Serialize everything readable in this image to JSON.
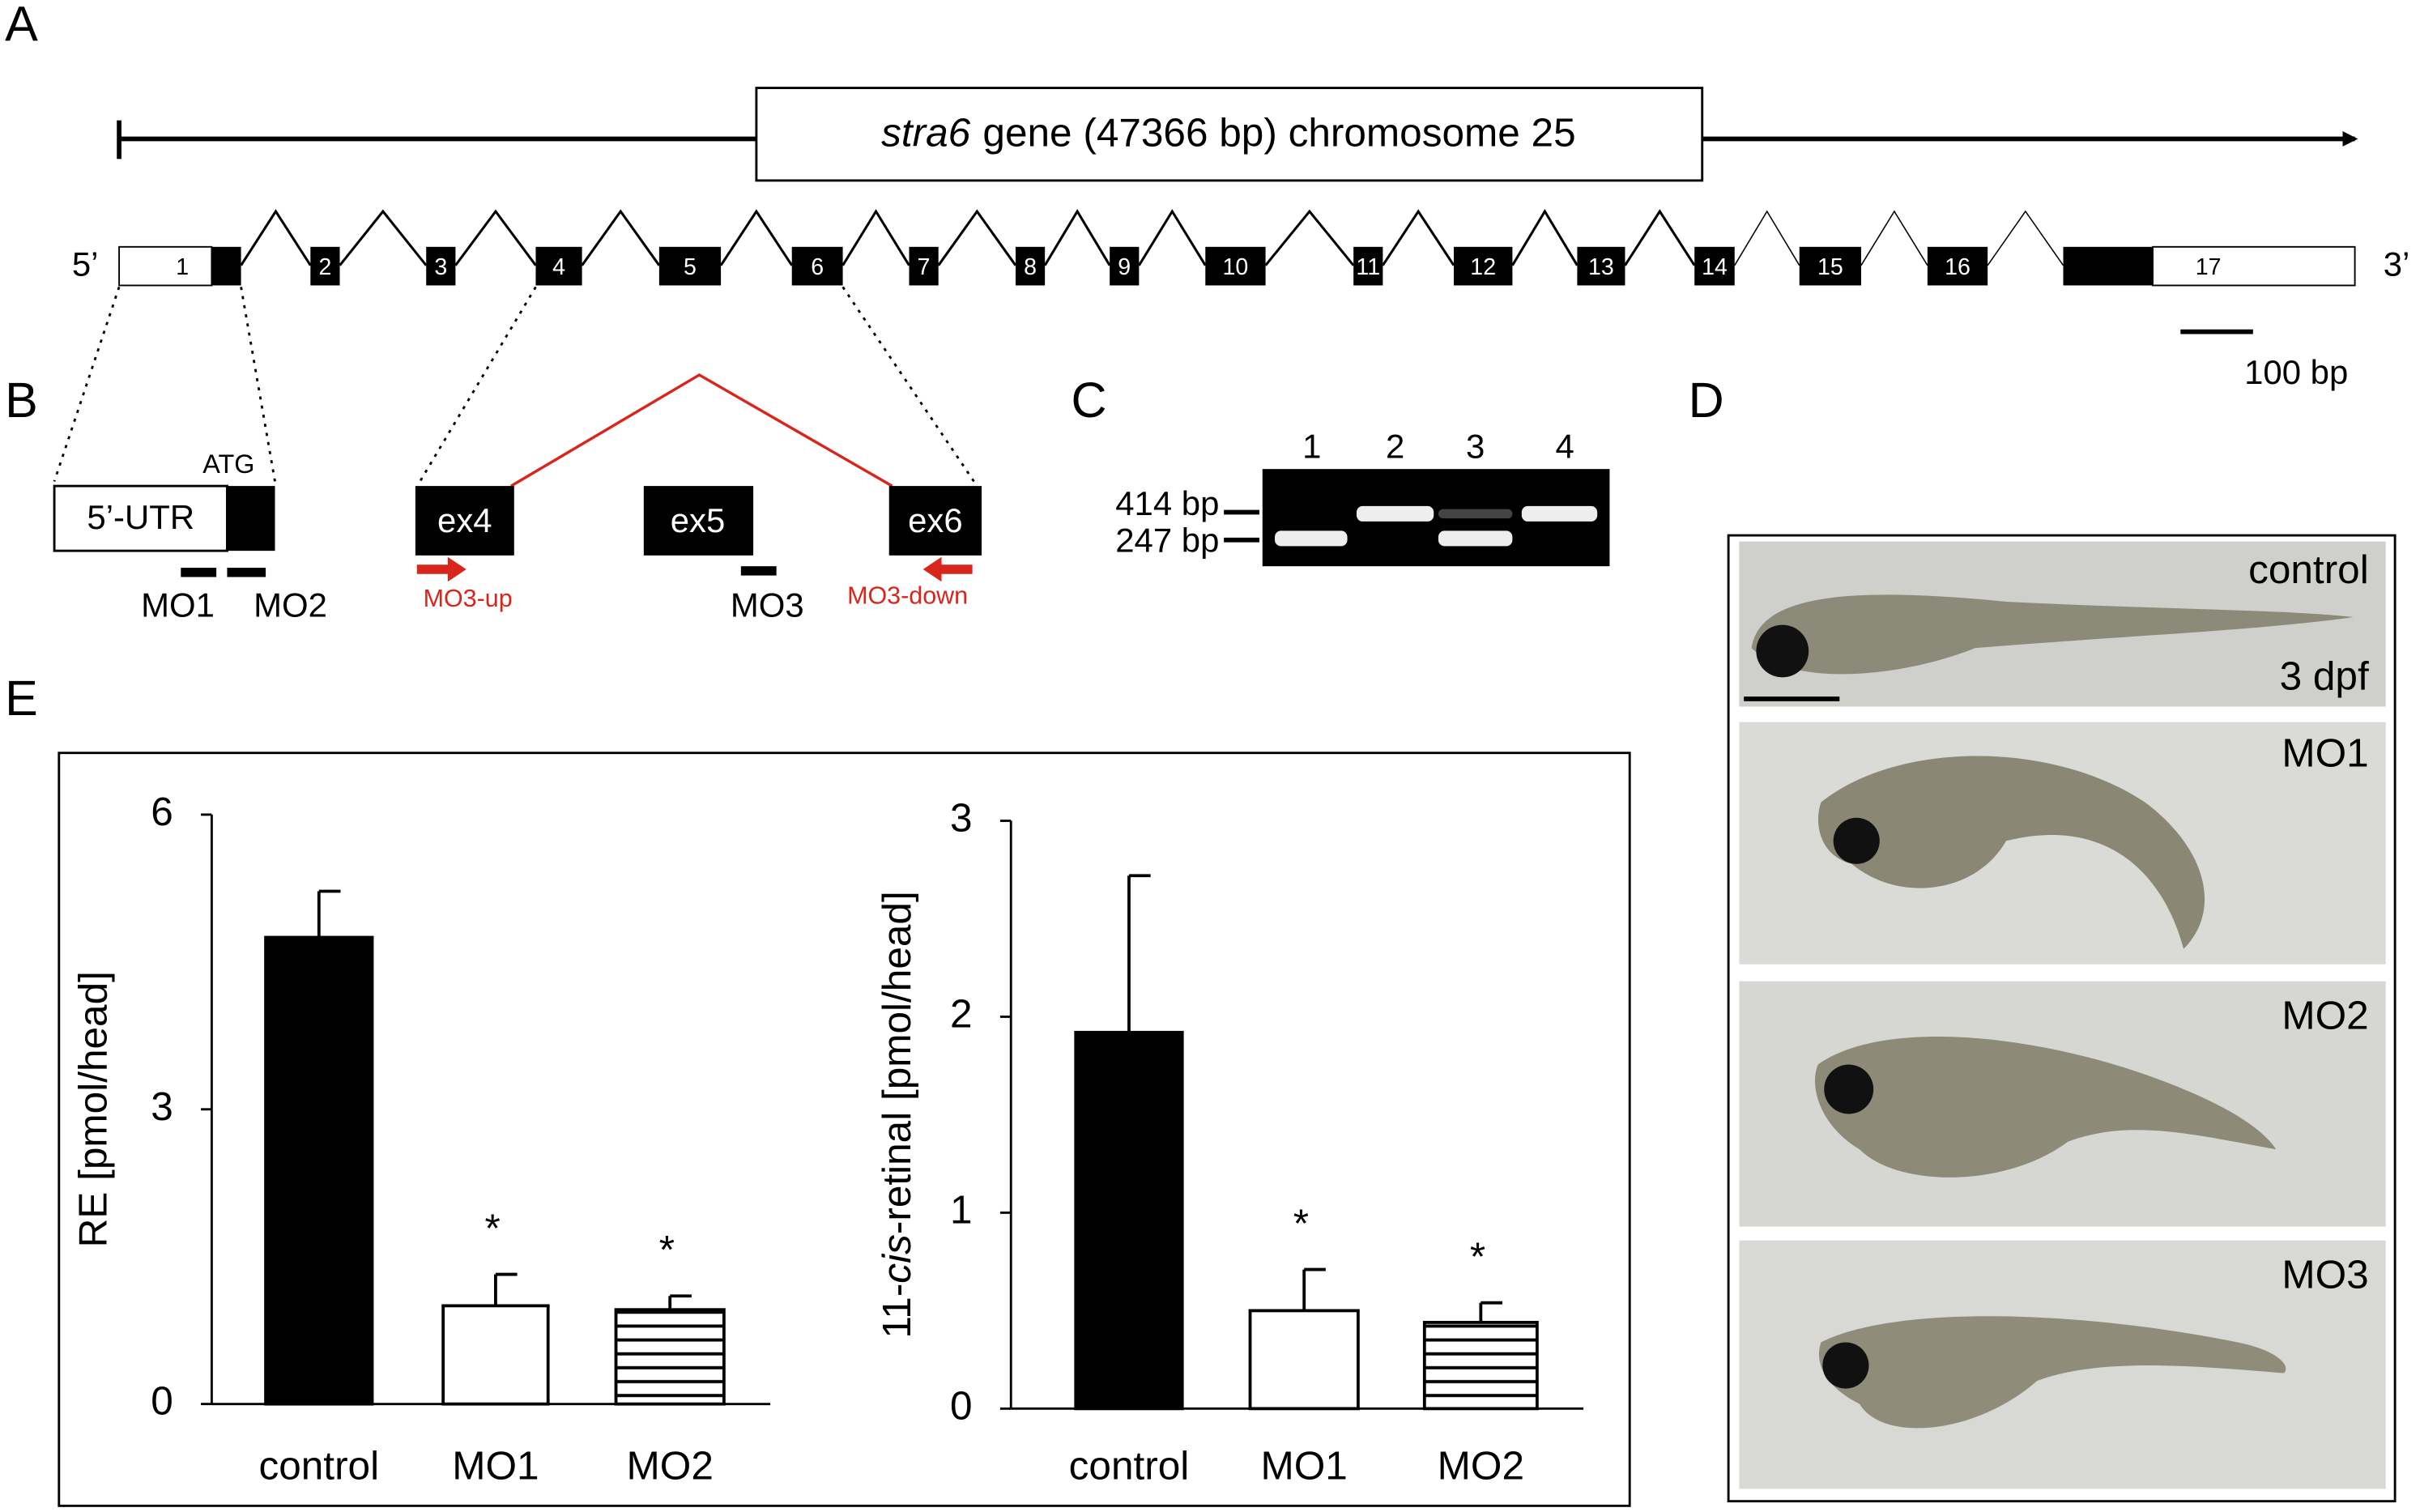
{
  "panels": [
    "A",
    "B",
    "C",
    "D",
    "E"
  ],
  "gene": {
    "title_italic": "stra6",
    "title_rest": "gene (47366 bp) chromosome 25",
    "five": "5’",
    "three": "3’",
    "exons": [
      "1",
      "2",
      "3",
      "4",
      "5",
      "6",
      "7",
      "8",
      "9",
      "10",
      "11",
      "12",
      "13",
      "14",
      "15",
      "16",
      "17"
    ],
    "scale": "100 bp"
  },
  "panel_b": {
    "utr": "5’-UTR",
    "atg": "ATG",
    "exons": [
      "ex4",
      "ex5",
      "ex6"
    ],
    "mo": [
      "MO1",
      "MO2",
      "MO3"
    ],
    "primers": [
      "MO3-up",
      "MO3-down"
    ]
  },
  "panel_c": {
    "lanes": [
      "1",
      "2",
      "3",
      "4"
    ],
    "markers": [
      "414 bp",
      "247 bp"
    ]
  },
  "panel_d": {
    "labels": [
      "control",
      "MO1",
      "MO2",
      "MO3"
    ],
    "stage": "3 dpf"
  },
  "chart_data": [
    {
      "type": "bar",
      "ylabel": [
        "RE [pmol/head]"
      ],
      "categories": [
        "control",
        "MO1",
        "MO2"
      ],
      "values": [
        4.75,
        1.0,
        0.96
      ],
      "errors": [
        0.47,
        0.32,
        0.14
      ],
      "colors": [
        "#000000",
        "#ffffff",
        "#ffffff"
      ],
      "hatch": [
        false,
        false,
        true
      ],
      "annotations": [
        null,
        "*",
        "*"
      ],
      "ylim": [
        0,
        6
      ],
      "yticks": [
        0,
        3,
        6
      ]
    },
    {
      "type": "bar",
      "ylabel": [
        "11-",
        "cis",
        "-retinal  [pmol/head]"
      ],
      "categories": [
        "control",
        "MO1",
        "MO2"
      ],
      "values": [
        1.92,
        0.5,
        0.44
      ],
      "errors": [
        0.8,
        0.21,
        0.1
      ],
      "colors": [
        "#000000",
        "#ffffff",
        "#ffffff"
      ],
      "hatch": [
        false,
        false,
        true
      ],
      "annotations": [
        null,
        "*",
        "*"
      ],
      "ylim": [
        0,
        3
      ],
      "yticks": [
        0,
        1,
        2,
        3
      ]
    }
  ]
}
